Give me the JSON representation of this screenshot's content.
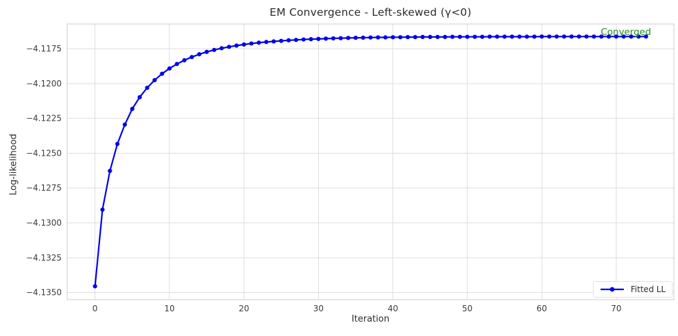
{
  "chart_data": {
    "type": "line",
    "title": "EM Convergence - Left-skewed (γ<0)",
    "xlabel": "Iteration",
    "ylabel": "Log-likelihood",
    "xlim": [
      -3.74,
      77.74
    ],
    "ylim": [
      -4.13551,
      -4.11573
    ],
    "grid": true,
    "grid_color": "#dedede",
    "spine_color": "#cccccc",
    "background_color": "#ffffff",
    "xticks": [
      0,
      10,
      20,
      30,
      40,
      50,
      60,
      70
    ],
    "xtick_labels": [
      "0",
      "10",
      "20",
      "30",
      "40",
      "50",
      "60",
      "70"
    ],
    "yticks": [
      -4.1175,
      -4.12,
      -4.1225,
      -4.125,
      -4.1275,
      -4.13,
      -4.1325,
      -4.135
    ],
    "ytick_labels": [
      "−4.1175",
      "−4.1200",
      "−4.1225",
      "−4.1250",
      "−4.1275",
      "−4.1300",
      "−4.1325",
      "−4.1350"
    ],
    "legend_position": "lower right",
    "legend": {
      "label": "Fitted LL"
    },
    "annotation": {
      "text": "Converged",
      "color": "#1e8b1e",
      "x": 74,
      "y": -4.11663
    },
    "series": [
      {
        "name": "Fitted LL",
        "color": "#0000ee",
        "marker": "circle",
        "x": [
          0,
          1,
          2,
          3,
          4,
          5,
          6,
          7,
          8,
          9,
          10,
          11,
          12,
          13,
          14,
          15,
          16,
          17,
          18,
          19,
          20,
          21,
          22,
          23,
          24,
          25,
          26,
          27,
          28,
          29,
          30,
          31,
          32,
          33,
          34,
          35,
          36,
          37,
          38,
          39,
          40,
          41,
          42,
          43,
          44,
          45,
          46,
          47,
          48,
          49,
          50,
          51,
          52,
          53,
          54,
          55,
          56,
          57,
          58,
          59,
          60,
          61,
          62,
          63,
          64,
          65,
          66,
          67,
          68,
          69,
          70,
          71,
          72,
          73,
          74
        ],
        "y": [
          -4.13455,
          -4.12905,
          -4.12627,
          -4.12434,
          -4.12295,
          -4.12182,
          -4.12098,
          -4.12031,
          -4.11976,
          -4.1193,
          -4.11892,
          -4.1186,
          -4.11833,
          -4.1181,
          -4.1179,
          -4.11773,
          -4.11759,
          -4.11747,
          -4.11737,
          -4.11728,
          -4.1172,
          -4.11713,
          -4.11707,
          -4.11702,
          -4.11698,
          -4.11694,
          -4.1169,
          -4.11687,
          -4.11684,
          -4.11682,
          -4.1168,
          -4.11678,
          -4.11676,
          -4.11675,
          -4.11673,
          -4.11672,
          -4.11671,
          -4.1167,
          -4.11669,
          -4.11669,
          -4.11668,
          -4.11668,
          -4.11667,
          -4.11667,
          -4.11666,
          -4.11666,
          -4.11666,
          -4.11666,
          -4.11665,
          -4.11665,
          -4.11665,
          -4.11665,
          -4.11665,
          -4.11664,
          -4.11664,
          -4.11664,
          -4.11664,
          -4.11664,
          -4.11664,
          -4.11664,
          -4.11663,
          -4.11663,
          -4.11663,
          -4.11663,
          -4.11663,
          -4.11663,
          -4.11663,
          -4.11663,
          -4.11663,
          -4.11663,
          -4.11663,
          -4.11663,
          -4.11663,
          -4.11663,
          -4.11663
        ]
      }
    ]
  }
}
